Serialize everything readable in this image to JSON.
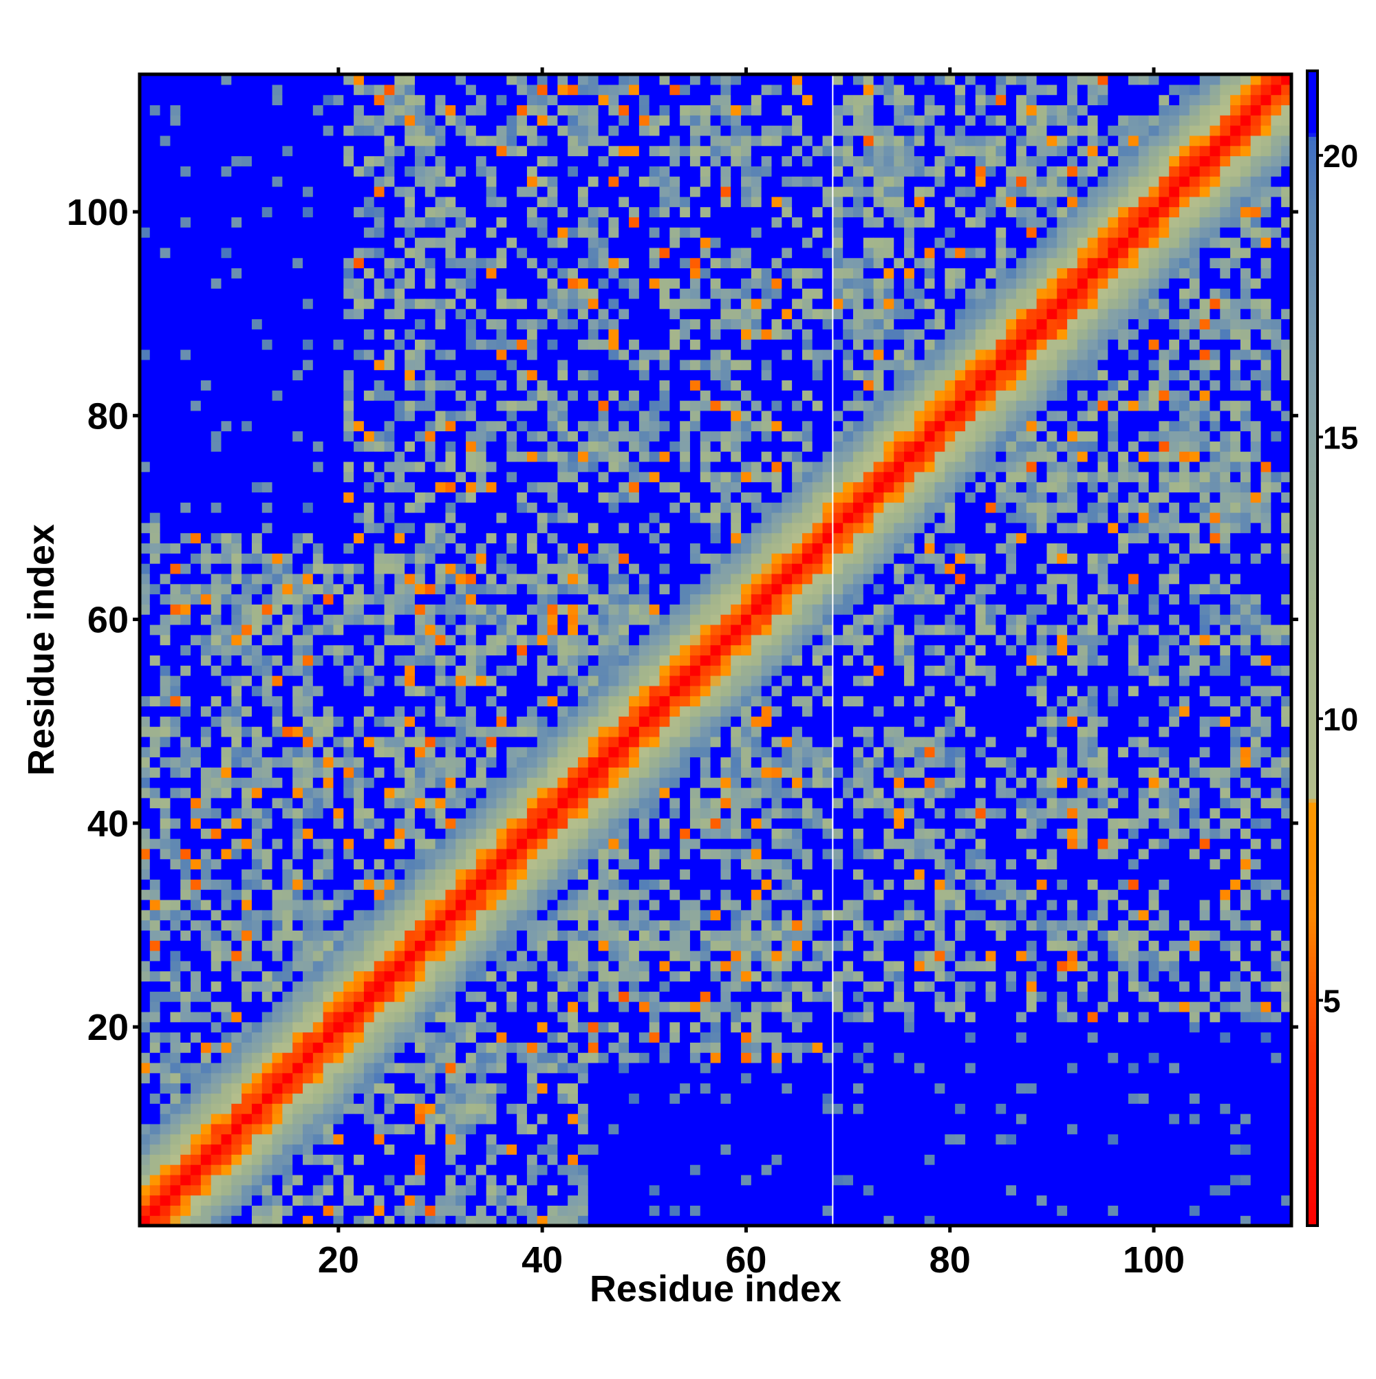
{
  "chart_data": {
    "type": "heatmap",
    "title": "",
    "xlabel": "Residue index",
    "ylabel": "Residue index",
    "n_residues": 113,
    "xlim": [
      1,
      113
    ],
    "ylim": [
      1,
      113
    ],
    "x_ticks": [
      20,
      40,
      60,
      80,
      100
    ],
    "y_ticks": [
      20,
      40,
      60,
      80,
      100
    ],
    "x_tick_labels": [
      "20",
      "40",
      "60",
      "80",
      "100"
    ],
    "y_tick_labels": [
      "20",
      "40",
      "60",
      "80",
      "100"
    ],
    "value_range": [
      1,
      21.5
    ],
    "colorbar": {
      "ticks": [
        5,
        10,
        15,
        20
      ],
      "tick_labels": [
        "5",
        "10",
        "15",
        "20"
      ],
      "stops": [
        {
          "value": 1,
          "color": "#ff0000"
        },
        {
          "value": 4,
          "color": "#ff3300"
        },
        {
          "value": 6.5,
          "color": "#ff8800"
        },
        {
          "value": 8.5,
          "color": "#ff9900"
        },
        {
          "value": 8.6,
          "color": "#b4be8c"
        },
        {
          "value": 12,
          "color": "#a2b48c"
        },
        {
          "value": 16,
          "color": "#7f9eab"
        },
        {
          "value": 19,
          "color": "#5a84b4"
        },
        {
          "value": 20.3,
          "color": "#3f6fc4"
        },
        {
          "value": 20.4,
          "color": "#0000ff"
        },
        {
          "value": 21.5,
          "color": "#0000ff"
        }
      ]
    },
    "diagonal": {
      "value": 1,
      "band_values": [
        3.8,
        5.5,
        8.5,
        10.5,
        12.5,
        14.5,
        16.5,
        18
      ]
    },
    "contact_blocks": [
      {
        "x": [
          1,
          68
        ],
        "y": [
          1,
          68
        ],
        "strength": 1
      },
      {
        "x": [
          69,
          113
        ],
        "y": [
          69,
          113
        ],
        "strength": 1
      },
      {
        "x": [
          1,
          68
        ],
        "y": [
          69,
          113
        ],
        "strength": 0.75
      },
      {
        "x": [
          69,
          113
        ],
        "y": [
          1,
          68
        ],
        "strength": 0.75
      }
    ],
    "empty_regions": [
      {
        "x": [
          1,
          20
        ],
        "y": [
          70,
          113
        ]
      },
      {
        "x": [
          69,
          113
        ],
        "y": [
          1,
          16
        ]
      },
      {
        "x": [
          45,
          68
        ],
        "y": [
          1,
          16
        ]
      }
    ],
    "domain_boundary": 68
  }
}
